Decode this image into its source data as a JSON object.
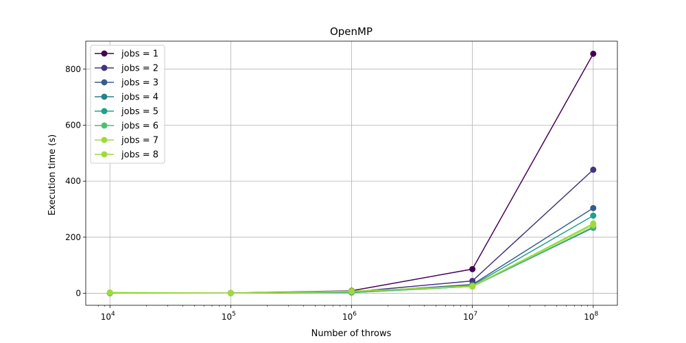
{
  "chart_data": {
    "type": "line",
    "title": "OpenMP",
    "xlabel": "Number of throws",
    "ylabel": "Execution time (s)",
    "xscale": "log",
    "x": [
      10000,
      100000,
      1000000,
      10000000,
      100000000
    ],
    "xticks": [
      {
        "value": 10000,
        "base": "10",
        "exp": "4"
      },
      {
        "value": 100000,
        "base": "10",
        "exp": "5"
      },
      {
        "value": 1000000,
        "base": "10",
        "exp": "6"
      },
      {
        "value": 10000000,
        "base": "10",
        "exp": "7"
      },
      {
        "value": 100000000,
        "base": "10",
        "exp": "8"
      }
    ],
    "yticks": [
      0,
      200,
      400,
      600,
      800
    ],
    "ylim": [
      -43,
      900
    ],
    "grid": true,
    "legend_position": "upper-left",
    "series": [
      {
        "name": "jobs = 1",
        "color": "#440154",
        "values": [
          0.9,
          0.9,
          8.6,
          86,
          855
        ]
      },
      {
        "name": "jobs = 2",
        "color": "#46327e",
        "values": [
          0.5,
          0.5,
          4.4,
          44,
          441
        ]
      },
      {
        "name": "jobs = 3",
        "color": "#365c8d",
        "values": [
          0.3,
          0.3,
          3.1,
          31,
          304
        ]
      },
      {
        "name": "jobs = 4",
        "color": "#277f8e",
        "values": [
          0.3,
          0.3,
          2.4,
          24,
          234
        ]
      },
      {
        "name": "jobs = 5",
        "color": "#1fa187",
        "values": [
          0.3,
          0.3,
          2.8,
          28,
          277
        ]
      },
      {
        "name": "jobs = 6",
        "color": "#4ac16d",
        "values": [
          0.3,
          0.3,
          2.4,
          24,
          237
        ]
      },
      {
        "name": "jobs = 7",
        "color": "#a0da39",
        "values": [
          2.5,
          0.5,
          6.5,
          26,
          244
        ]
      },
      {
        "name": "jobs = 8",
        "color": "#a0da39",
        "values": [
          2.5,
          0.5,
          7.5,
          24,
          249
        ]
      }
    ]
  }
}
